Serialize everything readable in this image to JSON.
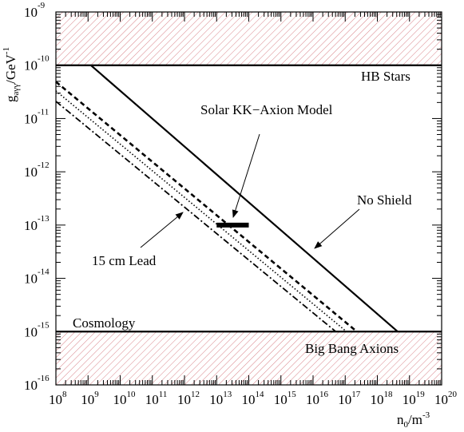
{
  "chart_data": {
    "type": "line",
    "x_scale": "log",
    "y_scale": "log",
    "xlim": [
      100000000.0,
      1e+20
    ],
    "ylim": [
      1e-16,
      1e-09
    ],
    "xlabel": {
      "base": "n",
      "sub": "0",
      "mid": "/m",
      "sup": "-3"
    },
    "ylabel": {
      "base": "g",
      "sub": "aγγ",
      "mid": "/GeV",
      "sup": "-1"
    },
    "x_ticks": [
      {
        "value": 100000000.0,
        "base": "10",
        "exp": "8"
      },
      {
        "value": 1000000000.0,
        "base": "10",
        "exp": "9"
      },
      {
        "value": 10000000000.0,
        "base": "10",
        "exp": "10"
      },
      {
        "value": 100000000000.0,
        "base": "10",
        "exp": "11"
      },
      {
        "value": 1000000000000.0,
        "base": "10",
        "exp": "12"
      },
      {
        "value": 10000000000000.0,
        "base": "10",
        "exp": "13"
      },
      {
        "value": 100000000000000.0,
        "base": "10",
        "exp": "14"
      },
      {
        "value": 1000000000000000.0,
        "base": "10",
        "exp": "15"
      },
      {
        "value": 1e+16,
        "base": "10",
        "exp": "16"
      },
      {
        "value": 1e+17,
        "base": "10",
        "exp": "17"
      },
      {
        "value": 1e+18,
        "base": "10",
        "exp": "18"
      },
      {
        "value": 1e+19,
        "base": "10",
        "exp": "19"
      },
      {
        "value": 1e+20,
        "base": "10",
        "exp": "20"
      }
    ],
    "y_ticks": [
      {
        "value": 1e-09,
        "base": "10",
        "exp": "-9"
      },
      {
        "value": 1e-10,
        "base": "10",
        "exp": "-10"
      },
      {
        "value": 1e-11,
        "base": "10",
        "exp": "-11"
      },
      {
        "value": 1e-12,
        "base": "10",
        "exp": "-12"
      },
      {
        "value": 1e-13,
        "base": "10",
        "exp": "-13"
      },
      {
        "value": 1e-14,
        "base": "10",
        "exp": "-14"
      },
      {
        "value": 1e-15,
        "base": "10",
        "exp": "-15"
      },
      {
        "value": 1e-16,
        "base": "10",
        "exp": "-16"
      }
    ],
    "hline_upper": 1e-10,
    "hline_lower": 1e-15,
    "excluded_regions": [
      {
        "y_from": 1e-10,
        "y_to": 1e-09,
        "color": "#d9848a"
      },
      {
        "y_from": 1e-16,
        "y_to": 1e-15,
        "color": "#d9848a"
      }
    ],
    "region_labels": {
      "hb_stars": "HB Stars",
      "cosmology": "Cosmology",
      "big_bang": "Big Bang Axions"
    },
    "series": [
      {
        "id": "no-shield",
        "style": "solid",
        "width": 2.2,
        "points": [
          [
            1220000000.0,
            1e-10
          ],
          [
            4.3e+18,
            1e-15
          ]
        ]
      },
      {
        "id": "dashed",
        "style": "dashed",
        "width": 2.6,
        "points": [
          [
            100000000.0,
            4.9e-11
          ],
          [
            2.3e+17,
            1e-15
          ]
        ]
      },
      {
        "id": "dotted",
        "style": "dotted",
        "width": 1.6,
        "points": [
          [
            100000000.0,
            3.3e-11
          ],
          [
            1.1e+17,
            1e-15
          ]
        ]
      },
      {
        "id": "dash-dot",
        "style": "dashdot",
        "width": 1.8,
        "points": [
          [
            100000000.0,
            2.1e-11
          ],
          [
            5.1e+16,
            1e-15
          ]
        ]
      }
    ],
    "model_bar": {
      "x_from": 10000000000000.0,
      "x_to": 100000000000000.0,
      "y": 1e-13
    },
    "annotations": {
      "solar_model": "Solar KK−Axion Model",
      "no_shield": "No Shield",
      "lead": "15 cm Lead"
    },
    "grid": false,
    "legend": "none"
  }
}
